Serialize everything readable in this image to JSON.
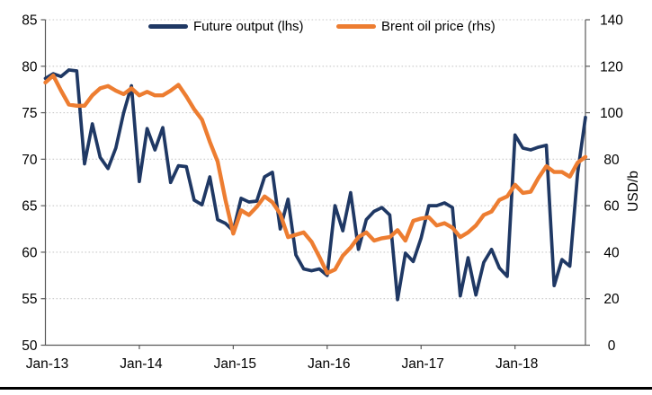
{
  "figure": {
    "background": "#ffffff",
    "bottom_rule_color": "#000000"
  },
  "legend": {
    "items": [
      {
        "label": "Future output (lhs)",
        "color": "#1f3864"
      },
      {
        "label": "Brent oil price (rhs)",
        "color": "#ed7d31"
      }
    ]
  },
  "chart_data": {
    "type": "line",
    "title": "",
    "grid": "horizontal-dotted",
    "grid_color": "#c9c9c9",
    "axis_color": "#595959",
    "x": [
      "Jan-13",
      "Feb-13",
      "Mar-13",
      "Apr-13",
      "May-13",
      "Jun-13",
      "Jul-13",
      "Aug-13",
      "Sep-13",
      "Oct-13",
      "Nov-13",
      "Dec-13",
      "Jan-14",
      "Feb-14",
      "Mar-14",
      "Apr-14",
      "May-14",
      "Jun-14",
      "Jul-14",
      "Aug-14",
      "Sep-14",
      "Oct-14",
      "Nov-14",
      "Dec-14",
      "Jan-15",
      "Feb-15",
      "Mar-15",
      "Apr-15",
      "May-15",
      "Jun-15",
      "Jul-15",
      "Aug-15",
      "Sep-15",
      "Oct-15",
      "Nov-15",
      "Dec-15",
      "Jan-16",
      "Feb-16",
      "Mar-16",
      "Apr-16",
      "May-16",
      "Jun-16",
      "Jul-16",
      "Aug-16",
      "Sep-16",
      "Oct-16",
      "Nov-16",
      "Dec-16",
      "Jan-17",
      "Feb-17",
      "Mar-17",
      "Apr-17",
      "May-17",
      "Jun-17",
      "Jul-17",
      "Aug-17",
      "Sep-17",
      "Oct-17",
      "Nov-17",
      "Dec-17",
      "Jan-18",
      "Feb-18",
      "Mar-18",
      "Apr-18",
      "May-18",
      "Jun-18",
      "Jul-18",
      "Aug-18",
      "Sep-18",
      "Oct-18"
    ],
    "x_ticks": {
      "indices": [
        0,
        12,
        24,
        36,
        48,
        60
      ],
      "labels": [
        "Jan-13",
        "Jan-14",
        "Jan-15",
        "Jan-16",
        "Jan-17",
        "Jan-18"
      ]
    },
    "series": [
      {
        "name": "Future output (lhs)",
        "axis": "left",
        "color": "#1f3864",
        "stroke_width": 3.7,
        "values": [
          78.7,
          79.2,
          78.9,
          79.6,
          79.5,
          69.5,
          73.8,
          70.2,
          69.0,
          71.2,
          75.0,
          77.9,
          67.6,
          73.3,
          71.0,
          73.4,
          67.5,
          69.3,
          69.2,
          65.6,
          65.1,
          68.1,
          63.5,
          63.1,
          62.3,
          65.8,
          65.4,
          65.5,
          68.1,
          68.6,
          62.5,
          65.7,
          59.7,
          58.2,
          58.0,
          58.2,
          57.5,
          65.0,
          62.3,
          66.4,
          60.3,
          63.5,
          64.4,
          64.8,
          64.0,
          54.9,
          59.9,
          59.0,
          61.5,
          65.0,
          65.0,
          65.3,
          64.8,
          55.3,
          59.4,
          55.4,
          58.9,
          60.3,
          58.3,
          57.4,
          72.6,
          71.2,
          71.0,
          71.3,
          71.5,
          56.4,
          59.2,
          58.5,
          68.5,
          74.5
        ]
      },
      {
        "name": "Brent oil price (rhs)",
        "axis": "right",
        "color": "#ed7d31",
        "stroke_width": 4.4,
        "values": [
          113,
          116,
          109.5,
          103.5,
          103,
          103,
          107.5,
          110.5,
          111.5,
          109.5,
          108,
          110.5,
          107.5,
          109,
          107.5,
          107.5,
          109.5,
          112,
          107,
          101.5,
          97,
          87.5,
          79,
          62.5,
          48,
          58,
          56,
          59.5,
          64,
          61.5,
          56.5,
          46.5,
          47.5,
          48.5,
          44.5,
          38,
          31,
          32.5,
          38.5,
          42,
          46.5,
          48.5,
          45,
          46,
          46.5,
          49.5,
          45,
          53.5,
          54.5,
          55,
          51.5,
          52.5,
          50.5,
          46.5,
          48.5,
          51.5,
          56,
          57.5,
          62.5,
          64,
          69,
          65.5,
          66,
          72,
          77,
          74.5,
          74.5,
          72.5,
          78.5,
          81
        ]
      }
    ],
    "left_axis": {
      "min": 50,
      "max": 85,
      "step": 5,
      "tick_labels": [
        "50",
        "55",
        "60",
        "65",
        "70",
        "75",
        "80",
        "85"
      ],
      "title": ""
    },
    "right_axis": {
      "min": 0,
      "max": 140,
      "step": 20,
      "tick_labels": [
        "0",
        "20",
        "40",
        "60",
        "80",
        "100",
        "120",
        "140"
      ],
      "title": "USD/b"
    }
  }
}
